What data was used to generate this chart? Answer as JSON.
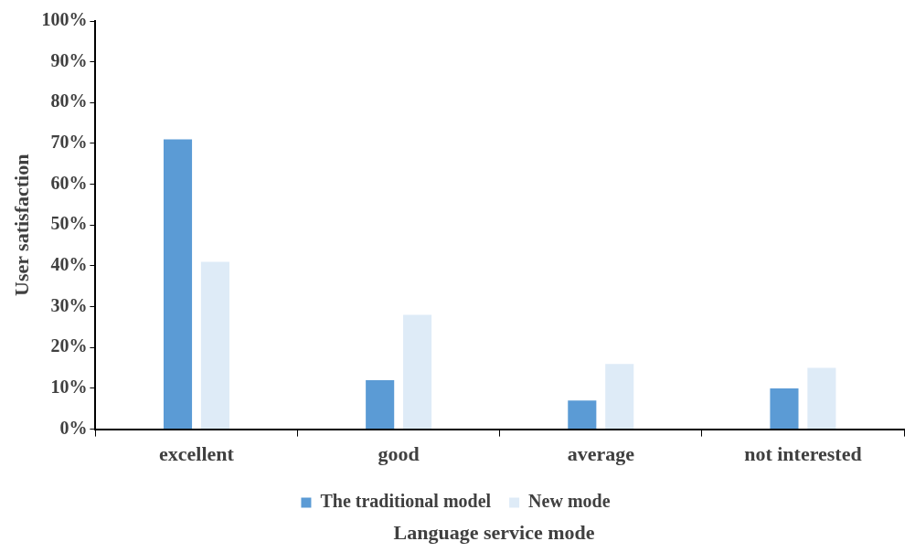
{
  "chart_data": {
    "type": "bar",
    "xlabel": "Language service mode",
    "ylabel": "User satisfaction",
    "categories": [
      "excellent",
      "good",
      "average",
      "not interested"
    ],
    "series": [
      {
        "name": "The traditional model",
        "color": "#5b9bd5",
        "values": [
          71,
          12,
          7,
          10
        ]
      },
      {
        "name": "New mode",
        "color": "#deebf7",
        "values": [
          41,
          28,
          16,
          15
        ]
      }
    ],
    "ylim": [
      0,
      100
    ],
    "yticks": [
      {
        "value": 0,
        "label": "0%"
      },
      {
        "value": 10,
        "label": "10%"
      },
      {
        "value": 20,
        "label": "20%"
      },
      {
        "value": 30,
        "label": "30%"
      },
      {
        "value": 40,
        "label": "40%"
      },
      {
        "value": 50,
        "label": "50%"
      },
      {
        "value": 60,
        "label": "60%"
      },
      {
        "value": 70,
        "label": "70%"
      },
      {
        "value": 80,
        "label": "80%"
      },
      {
        "value": 90,
        "label": "90%"
      },
      {
        "value": 100,
        "label": "100%"
      }
    ],
    "grid": false,
    "legend": "bottom"
  }
}
